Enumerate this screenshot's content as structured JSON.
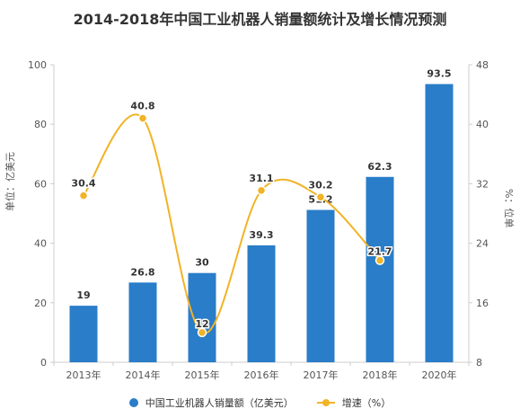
{
  "title": "2014-2018年中国工业机器人销量额统计及增长情况预测",
  "chart_data": {
    "type": "bar",
    "title": "2014-2018年中国工业机器人销量额统计及增长情况预测",
    "categories": [
      "2013年",
      "2014年",
      "2015年",
      "2016年",
      "2017年",
      "2018年",
      "2020年"
    ],
    "series": [
      {
        "name": "中国工业机器人销量额（亿美元）",
        "type": "bar",
        "axis": "left",
        "color": "#2a7dc8",
        "values": [
          19,
          26.8,
          30,
          39.3,
          51.2,
          62.3,
          93.5
        ],
        "labels": [
          "19",
          "26.8",
          "30",
          "39.3",
          "51.2",
          "62.3",
          "93.5"
        ]
      },
      {
        "name": "增速（%）",
        "type": "line",
        "axis": "right",
        "color": "#f1b327",
        "values": [
          30.4,
          40.8,
          12,
          31.1,
          30.2,
          21.7,
          null
        ],
        "labels": [
          "30.4",
          "40.8",
          "12",
          "31.1",
          "30.2",
          "21.7",
          ""
        ]
      }
    ],
    "y_left": {
      "label": "单位：亿美元",
      "range": [
        0,
        100
      ],
      "ticks": [
        "0",
        "20",
        "40",
        "60",
        "80",
        "100"
      ]
    },
    "y_right": {
      "label": "%：位单",
      "range": [
        8,
        48
      ],
      "ticks": [
        "8",
        "16",
        "24",
        "32",
        "40",
        "48"
      ]
    },
    "grid": false,
    "legend_position": "bottom"
  },
  "legend": {
    "bar_label": "中国工业机器人销量额（亿美元）",
    "line_label": "增速（%）"
  }
}
